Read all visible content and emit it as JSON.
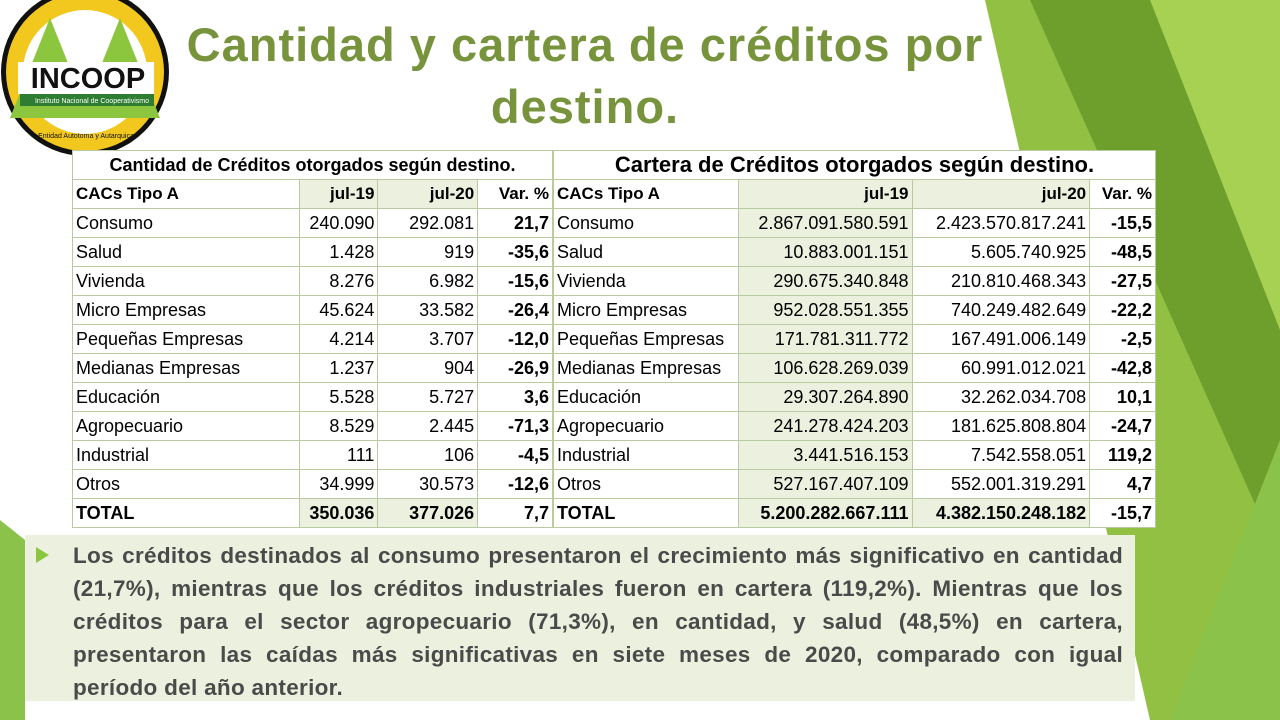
{
  "logo": {
    "name": "INCOOP",
    "subtitle": "Instituto Nacional de Cooperativismo",
    "motto": "Entidad Autotoma y Autarquica"
  },
  "title": "Cantidad y cartera de créditos por destino.",
  "tables": [
    {
      "title": "Cantidad de Créditos otorgados según destino.",
      "header": [
        "CACs Tipo A",
        "jul-19",
        "jul-20",
        "Var. %"
      ],
      "rows": [
        [
          "Consumo",
          "240.090",
          "292.081",
          "21,7"
        ],
        [
          "Salud",
          "1.428",
          "919",
          "-35,6"
        ],
        [
          "Vivienda",
          "8.276",
          "6.982",
          "-15,6"
        ],
        [
          "Micro Empresas",
          "45.624",
          "33.582",
          "-26,4"
        ],
        [
          "Pequeñas Empresas",
          "4.214",
          "3.707",
          "-12,0"
        ],
        [
          "Medianas Empresas",
          "1.237",
          "904",
          "-26,9"
        ],
        [
          "Educación",
          "5.528",
          "5.727",
          "3,6"
        ],
        [
          "Agropecuario",
          "8.529",
          "2.445",
          "-71,3"
        ],
        [
          "Industrial",
          "111",
          "106",
          "-4,5"
        ],
        [
          "Otros",
          "34.999",
          "30.573",
          "-12,6"
        ],
        [
          "TOTAL",
          "350.036",
          "377.026",
          "7,7"
        ]
      ]
    },
    {
      "title": "Cartera de Créditos otorgados según destino.",
      "header": [
        "CACs Tipo A",
        "jul-19",
        "jul-20",
        "Var. %"
      ],
      "rows": [
        [
          "Consumo",
          "2.867.091.580.591",
          "2.423.570.817.241",
          "-15,5"
        ],
        [
          "Salud",
          "10.883.001.151",
          "5.605.740.925",
          "-48,5"
        ],
        [
          "Vivienda",
          "290.675.340.848",
          "210.810.468.343",
          "-27,5"
        ],
        [
          "Micro Empresas",
          "952.028.551.355",
          "740.249.482.649",
          "-22,2"
        ],
        [
          "Pequeñas Empresas",
          "171.781.311.772",
          "167.491.006.149",
          "-2,5"
        ],
        [
          "Medianas Empresas",
          "106.628.269.039",
          "60.991.012.021",
          "-42,8"
        ],
        [
          "Educación",
          "29.307.264.890",
          "32.262.034.708",
          "10,1"
        ],
        [
          "Agropecuario",
          "241.278.424.203",
          "181.625.808.804",
          "-24,7"
        ],
        [
          "Industrial",
          "3.441.516.153",
          "7.542.558.051",
          "119,2"
        ],
        [
          "Otros",
          "527.167.407.109",
          "552.001.319.291",
          "4,7"
        ],
        [
          "TOTAL",
          "5.200.282.667.111",
          "4.382.150.248.182",
          "-15,7"
        ]
      ]
    }
  ],
  "note": "Los créditos destinados al consumo presentaron el crecimiento más significativo en cantidad (21,7%), mientras que los créditos industriales fueron en cartera (119,2%). Mientras que los créditos para el sector agropecuario (71,3%), en cantidad, y salud (48,5%) en cartera, presentaron las caídas más significativas en siete meses de 2020, comparado con igual período del año anterior."
}
